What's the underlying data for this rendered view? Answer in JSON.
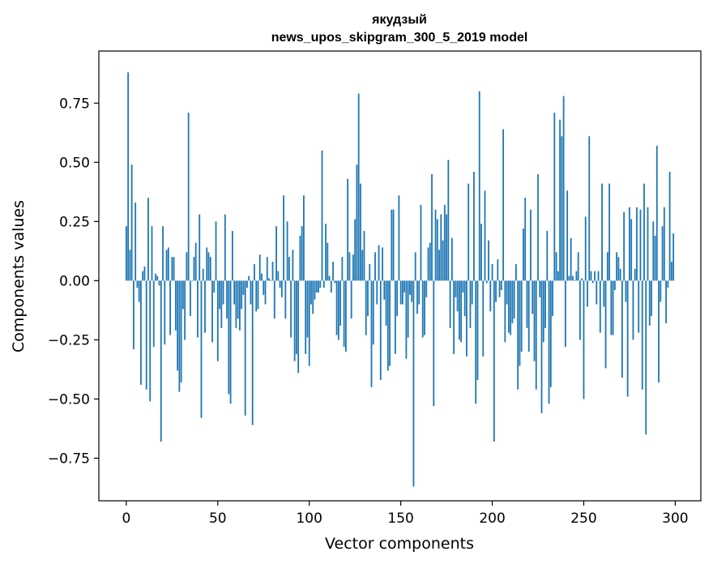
{
  "chart_data": {
    "type": "bar",
    "title": "якудзый",
    "subtitle": "news_upos_skipgram_300_5_2019 model",
    "xlabel": "Vector components",
    "ylabel": "Components values",
    "xlim": [
      -15,
      314
    ],
    "ylim": [
      -0.93,
      0.97
    ],
    "xticks": [
      0,
      50,
      100,
      150,
      200,
      250,
      300
    ],
    "xtick_labels": [
      "0",
      "50",
      "100",
      "150",
      "200",
      "250",
      "300"
    ],
    "yticks": [
      -0.75,
      -0.5,
      -0.25,
      0.0,
      0.25,
      0.5,
      0.75
    ],
    "ytick_labels": [
      "−0.75",
      "−0.50",
      "−0.25",
      "0.00",
      "0.25",
      "0.50",
      "0.75"
    ],
    "bar_color": "#1f77b4",
    "grid": false,
    "values": [
      0.23,
      0.88,
      0.13,
      0.49,
      -0.29,
      0.33,
      -0.03,
      -0.09,
      -0.44,
      0.04,
      0.06,
      -0.46,
      0.35,
      -0.51,
      0.23,
      -0.28,
      0.03,
      0.02,
      -0.02,
      -0.68,
      0.23,
      -0.27,
      0.13,
      0.14,
      -0.23,
      0.1,
      0.1,
      -0.21,
      -0.38,
      -0.47,
      -0.43,
      -0.12,
      -0.25,
      0.12,
      0.71,
      -0.15,
      0.0,
      0.1,
      0.16,
      -0.24,
      0.28,
      -0.58,
      0.05,
      -0.22,
      0.14,
      0.12,
      0.1,
      -0.26,
      -0.05,
      0.25,
      -0.34,
      -0.12,
      -0.2,
      -0.1,
      0.28,
      -0.16,
      -0.48,
      -0.52,
      0.21,
      -0.1,
      -0.2,
      -0.16,
      -0.21,
      -0.12,
      -0.06,
      -0.57,
      -0.03,
      0.02,
      -0.1,
      -0.61,
      0.07,
      -0.13,
      -0.12,
      0.11,
      0.03,
      -0.06,
      -0.1,
      0.1,
      0.01,
      0.0,
      0.08,
      -0.16,
      0.23,
      0.04,
      -0.03,
      -0.07,
      0.36,
      -0.16,
      0.25,
      0.1,
      -0.24,
      0.13,
      -0.34,
      -0.31,
      -0.39,
      0.19,
      0.23,
      0.36,
      -0.31,
      -0.24,
      -0.36,
      -0.1,
      -0.14,
      -0.08,
      -0.05,
      -0.05,
      -0.03,
      0.55,
      -0.03,
      0.24,
      0.16,
      0.02,
      -0.05,
      0.08,
      -0.01,
      -0.23,
      -0.25,
      -0.19,
      0.1,
      -0.28,
      -0.3,
      0.43,
      0.12,
      -0.16,
      0.11,
      0.26,
      0.49,
      0.79,
      0.41,
      0.13,
      0.21,
      -0.23,
      -0.15,
      0.07,
      -0.45,
      -0.27,
      0.12,
      -0.1,
      0.15,
      -0.42,
      0.14,
      -0.08,
      -0.19,
      -0.38,
      -0.36,
      0.3,
      0.3,
      -0.31,
      -0.15,
      0.36,
      -0.1,
      -0.1,
      -0.05,
      -0.33,
      -0.24,
      -0.06,
      -0.09,
      -0.87,
      0.12,
      -0.14,
      -0.1,
      0.32,
      -0.24,
      -0.23,
      -0.07,
      0.14,
      0.16,
      0.45,
      -0.53,
      0.3,
      0.26,
      0.13,
      0.28,
      0.17,
      0.32,
      0.28,
      0.51,
      -0.2,
      0.18,
      -0.31,
      -0.07,
      -0.13,
      -0.25,
      -0.26,
      -0.05,
      -0.15,
      -0.32,
      0.41,
      -0.2,
      -0.1,
      0.46,
      -0.52,
      -0.42,
      0.8,
      0.24,
      -0.32,
      0.38,
      -0.01,
      0.17,
      -0.13,
      0.07,
      -0.68,
      -0.09,
      0.09,
      -0.07,
      -0.04,
      0.64,
      -0.26,
      -0.1,
      -0.22,
      -0.23,
      -0.18,
      -0.16,
      0.07,
      -0.46,
      -0.36,
      -0.3,
      0.22,
      0.35,
      -0.2,
      -0.3,
      0.3,
      -0.14,
      -0.34,
      -0.46,
      0.45,
      -0.07,
      -0.56,
      -0.26,
      -0.2,
      0.21,
      -0.52,
      -0.45,
      -0.15,
      0.71,
      0.12,
      0.04,
      0.68,
      0.61,
      0.78,
      -0.28,
      0.38,
      0.02,
      0.18,
      0.02,
      0.0,
      0.04,
      0.12,
      -0.25,
      0.01,
      -0.5,
      0.27,
      -0.11,
      0.61,
      0.04,
      -0.01,
      0.04,
      -0.1,
      0.04,
      -0.22,
      0.41,
      -0.11,
      -0.37,
      0.12,
      0.41,
      -0.23,
      -0.23,
      -0.04,
      0.12,
      0.1,
      0.05,
      -0.41,
      0.29,
      -0.09,
      -0.49,
      0.31,
      0.26,
      -0.25,
      0.05,
      0.31,
      -0.22,
      0.3,
      -0.46,
      0.41,
      -0.65,
      0.31,
      -0.19,
      -0.15,
      0.25,
      0.19,
      0.57,
      -0.43,
      -0.09,
      0.23,
      0.31,
      -0.18,
      -0.03,
      0.46,
      0.08,
      0.2
    ]
  }
}
